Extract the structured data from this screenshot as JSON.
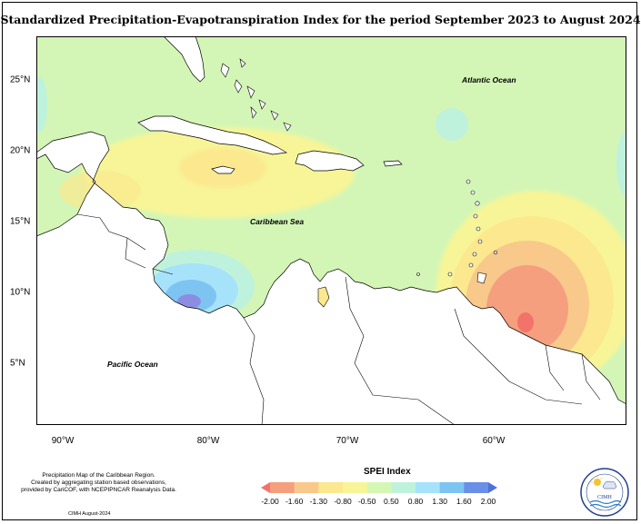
{
  "title": "Standardized Precipitation-Evapotranspiration Index for the period September 2023 to August 2024",
  "map": {
    "latitudes": [
      "25°N",
      "20°N",
      "15°N",
      "10°N",
      "5°N"
    ],
    "longitudes": [
      "90°W",
      "80°W",
      "70°W",
      "60°W"
    ],
    "labels": {
      "atlantic": "Atlantic Ocean",
      "caribbean": "Caribbean Sea",
      "pacific": "Pacific Ocean"
    }
  },
  "legend": {
    "title": "SPEI Index",
    "ticks": [
      "-2.00",
      "-1.60",
      "-1.30",
      "-0.80",
      "-0.50",
      "0.50",
      "0.80",
      "1.30",
      "1.60",
      "2.00"
    ],
    "colors": [
      "#f3736b",
      "#f59f7f",
      "#f8c98a",
      "#fbe88f",
      "#f7f598",
      "#d6f7b4",
      "#bff2dd",
      "#a6e3fb",
      "#7ec4f3",
      "#6a8fe6",
      "#4e72d8"
    ]
  },
  "credit": {
    "line1": "Precipitation Map of the Caribbean Region.",
    "line2": "Created by aggregating station based observations,",
    "line3": "provided by CariCOF, with NCEPIPNCAR Reanalysis Data.",
    "date": "CIMH August-2024"
  },
  "logo": {
    "text": "CIMH",
    "icon": "cimh-logo-icon"
  },
  "colors": {
    "background_field": "#d3f6b6",
    "dry_moderate": "#fbe88f",
    "dry_severe": "#f59f7f",
    "dry_extreme": "#f3736b",
    "wet_moderate": "#a6e3fb",
    "wet_severe": "#7ec4f3",
    "wet_extreme": "#8c8de0",
    "land": "#ffffff"
  }
}
